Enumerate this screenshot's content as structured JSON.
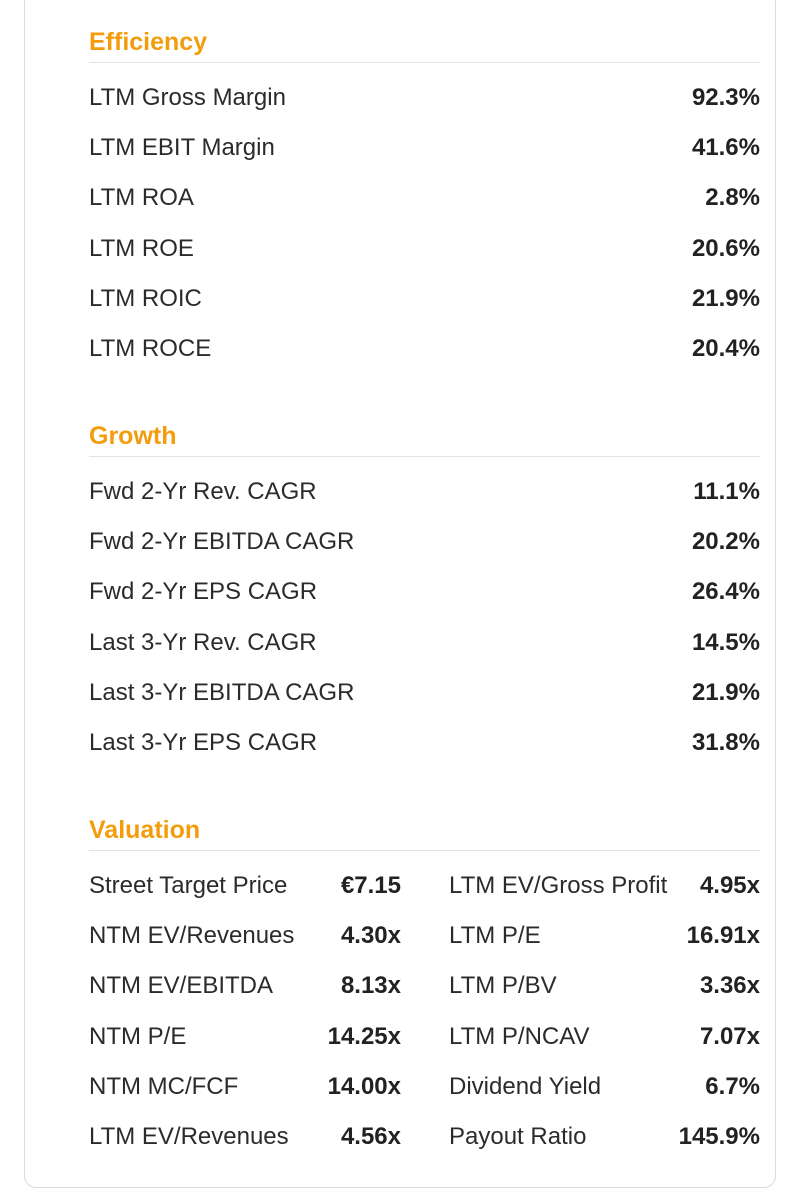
{
  "sections": [
    {
      "title": "Efficiency",
      "rows": [
        {
          "label": "LTM Gross Margin",
          "value": "92.3%"
        },
        {
          "label": "LTM EBIT Margin",
          "value": "41.6%"
        },
        {
          "label": "LTM ROA",
          "value": "2.8%"
        },
        {
          "label": "LTM ROE",
          "value": "20.6%"
        },
        {
          "label": "LTM ROIC",
          "value": "21.9%"
        },
        {
          "label": "LTM ROCE",
          "value": "20.4%"
        }
      ]
    },
    {
      "title": "Growth",
      "rows": [
        {
          "label": "Fwd 2-Yr Rev. CAGR",
          "value": "11.1%"
        },
        {
          "label": "Fwd 2-Yr EBITDA CAGR",
          "value": "20.2%"
        },
        {
          "label": "Fwd 2-Yr EPS CAGR",
          "value": "26.4%"
        },
        {
          "label": "Last 3-Yr Rev. CAGR",
          "value": "14.5%"
        },
        {
          "label": "Last 3-Yr EBITDA CAGR",
          "value": "21.9%"
        },
        {
          "label": "Last 3-Yr EPS CAGR",
          "value": "31.8%"
        }
      ]
    },
    {
      "title": "Valuation",
      "left": [
        {
          "label": "Street Target Price",
          "value": "€7.15"
        },
        {
          "label": "NTM EV/Revenues",
          "value": "4.30x"
        },
        {
          "label": "NTM EV/EBITDA",
          "value": "8.13x"
        },
        {
          "label": "NTM P/E",
          "value": "14.25x"
        },
        {
          "label": "NTM MC/FCF",
          "value": "14.00x"
        },
        {
          "label": "LTM EV/Revenues",
          "value": "4.56x"
        }
      ],
      "right": [
        {
          "label": "LTM EV/Gross Profit",
          "value": "4.95x"
        },
        {
          "label": "LTM P/E",
          "value": "16.91x"
        },
        {
          "label": "LTM P/BV",
          "value": "3.36x"
        },
        {
          "label": "LTM P/NCAV",
          "value": "7.07x"
        },
        {
          "label": "Dividend Yield",
          "value": "6.7%"
        },
        {
          "label": "Payout Ratio",
          "value": "145.9%"
        }
      ]
    }
  ],
  "colors": {
    "accent": "#f39c0c",
    "text": "#222222",
    "divider": "#e3e3e3"
  }
}
